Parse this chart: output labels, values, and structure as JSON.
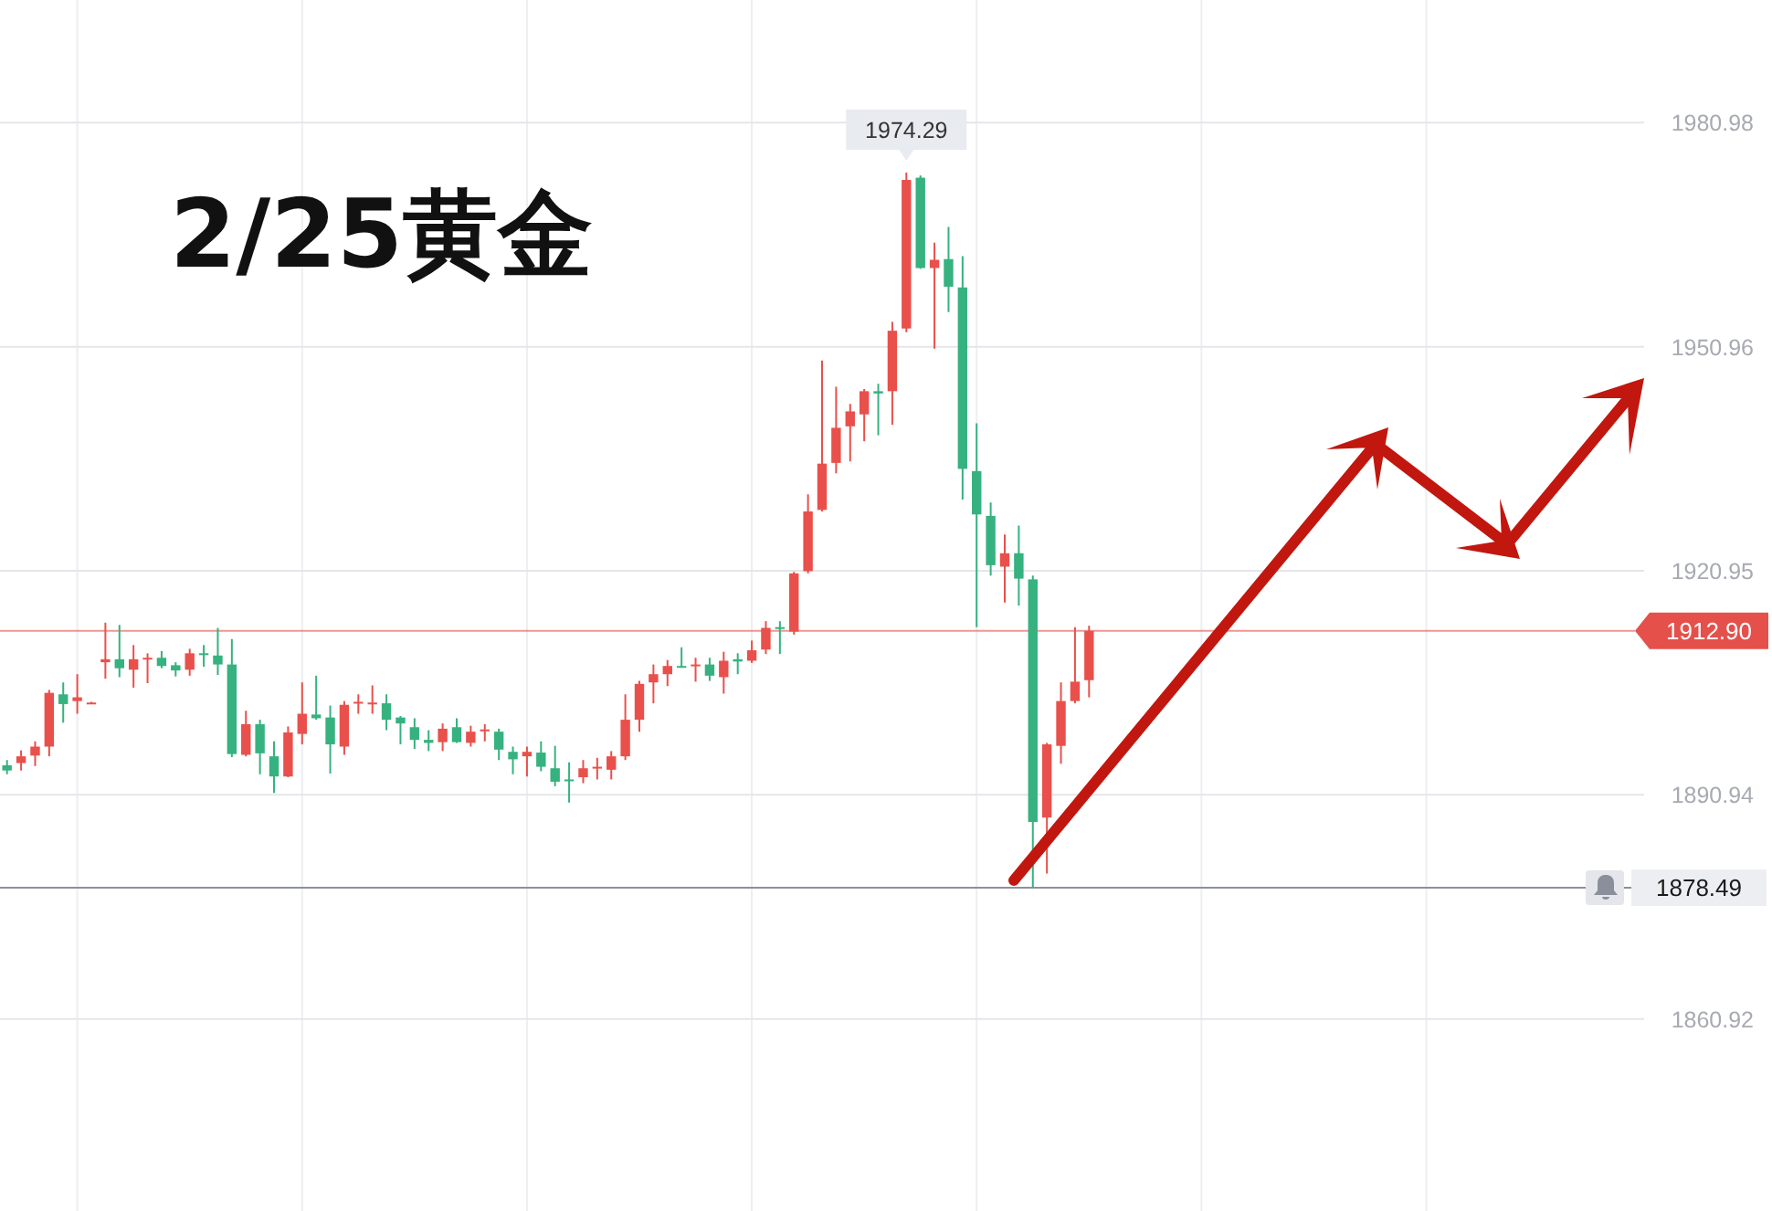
{
  "chart_data": {
    "type": "candlestick",
    "title": "2/25黄金",
    "categories": [
      null,
      null,
      null,
      null,
      null,
      null,
      null,
      null,
      null,
      null,
      null,
      null,
      null,
      null,
      null,
      null,
      null,
      null,
      null,
      null,
      null,
      null,
      null,
      null,
      null,
      null,
      null,
      null,
      null,
      null,
      null,
      null,
      null,
      null,
      null,
      null,
      null,
      null,
      null,
      null,
      null,
      null,
      null,
      null,
      null,
      null,
      null,
      null,
      null,
      null,
      null,
      null,
      null,
      null,
      null,
      null,
      null,
      null,
      null,
      null,
      null,
      null,
      null,
      null,
      null,
      null,
      null,
      null,
      null,
      null,
      null,
      null,
      null,
      null,
      null,
      null,
      null,
      null,
      null,
      null,
      null,
      null,
      null,
      null,
      null,
      null,
      null,
      null,
      null,
      null,
      null,
      null,
      null,
      null,
      null,
      null,
      null,
      null,
      null,
      null,
      null,
      null,
      null,
      null,
      null,
      null,
      null,
      null,
      null,
      null,
      null,
      null,
      null,
      null,
      null,
      null,
      null
    ],
    "ohlc": [
      [
        1894.9,
        1895.6,
        1893.7,
        1894.2
      ],
      [
        1895.2,
        1896.9,
        1894.2,
        1896.1
      ],
      [
        1896.2,
        1898.1,
        1894.8,
        1897.4
      ],
      [
        1897.4,
        1905.0,
        1896.1,
        1904.6
      ],
      [
        1904.4,
        1906.0,
        1900.6,
        1903.1
      ],
      [
        1903.5,
        1907.1,
        1901.8,
        1904.0
      ],
      [
        1903.2,
        1903.4,
        1903.1,
        1903.3
      ],
      [
        1908.7,
        1914.0,
        1906.5,
        1909.1
      ],
      [
        1909.1,
        1913.7,
        1906.7,
        1907.9
      ],
      [
        1907.7,
        1911.0,
        1905.3,
        1909.1
      ],
      [
        1909.1,
        1909.9,
        1905.9,
        1909.3
      ],
      [
        1909.3,
        1910.2,
        1907.9,
        1908.2
      ],
      [
        1908.3,
        1908.7,
        1906.8,
        1907.6
      ],
      [
        1907.7,
        1910.5,
        1906.9,
        1909.9
      ],
      [
        1909.9,
        1911.0,
        1908.1,
        1909.7
      ],
      [
        1909.6,
        1913.3,
        1907.0,
        1908.4
      ],
      [
        1908.4,
        1911.8,
        1896.0,
        1896.4
      ],
      [
        1896.3,
        1902.2,
        1896.1,
        1900.4
      ],
      [
        1900.4,
        1901.0,
        1893.7,
        1896.5
      ],
      [
        1896.1,
        1898.1,
        1891.2,
        1893.4
      ],
      [
        1893.4,
        1900.1,
        1893.3,
        1899.3
      ],
      [
        1899.1,
        1906.0,
        1897.7,
        1901.8
      ],
      [
        1901.7,
        1906.9,
        1901.0,
        1901.2
      ],
      [
        1901.3,
        1902.9,
        1893.8,
        1897.7
      ],
      [
        1897.4,
        1903.5,
        1896.3,
        1903.0
      ],
      [
        1903.2,
        1904.4,
        1901.8,
        1903.4
      ],
      [
        1903.2,
        1905.6,
        1901.8,
        1903.3
      ],
      [
        1903.2,
        1904.4,
        1899.6,
        1901.0
      ],
      [
        1901.3,
        1901.5,
        1897.7,
        1900.5
      ],
      [
        1900.0,
        1901.2,
        1897.1,
        1898.3
      ],
      [
        1898.3,
        1899.6,
        1896.8,
        1897.9
      ],
      [
        1898.0,
        1900.5,
        1896.8,
        1899.8
      ],
      [
        1900.0,
        1901.2,
        1897.9,
        1898.0
      ],
      [
        1897.9,
        1900.2,
        1897.4,
        1899.4
      ],
      [
        1899.5,
        1900.4,
        1898.1,
        1899.7
      ],
      [
        1899.4,
        1899.8,
        1895.6,
        1897.0
      ],
      [
        1896.7,
        1897.4,
        1893.7,
        1895.7
      ],
      [
        1896.1,
        1897.4,
        1893.4,
        1896.7
      ],
      [
        1896.6,
        1898.1,
        1894.1,
        1894.7
      ],
      [
        1894.5,
        1897.5,
        1892.1,
        1892.7
      ],
      [
        1893.0,
        1895.3,
        1889.9,
        1892.8
      ],
      [
        1893.3,
        1895.6,
        1892.5,
        1894.5
      ],
      [
        1894.5,
        1895.9,
        1893.0,
        1894.7
      ],
      [
        1894.3,
        1896.8,
        1893.0,
        1896.1
      ],
      [
        1896.1,
        1904.4,
        1895.6,
        1901.0
      ],
      [
        1901.0,
        1906.2,
        1899.4,
        1905.8
      ],
      [
        1906.0,
        1908.4,
        1903.2,
        1907.1
      ],
      [
        1907.1,
        1909.0,
        1905.5,
        1908.2
      ],
      [
        1908.2,
        1910.7,
        1908.0,
        1908.0
      ],
      [
        1908.2,
        1909.3,
        1906.1,
        1908.4
      ],
      [
        1908.4,
        1909.3,
        1906.2,
        1906.9
      ],
      [
        1906.7,
        1910.1,
        1904.5,
        1908.9
      ],
      [
        1909.1,
        1909.9,
        1907.1,
        1908.8
      ],
      [
        1908.9,
        1911.6,
        1908.6,
        1910.3
      ],
      [
        1910.4,
        1914.2,
        1909.8,
        1913.3
      ],
      [
        1913.4,
        1914.2,
        1909.8,
        1913.2
      ],
      [
        1912.8,
        1920.8,
        1912.4,
        1920.6
      ],
      [
        1920.9,
        1931.2,
        1920.6,
        1928.9
      ],
      [
        1929.1,
        1949.1,
        1928.9,
        1935.3
      ],
      [
        1935.4,
        1945.6,
        1934.0,
        1940.1
      ],
      [
        1940.3,
        1943.3,
        1935.6,
        1942.3
      ],
      [
        1941.9,
        1945.3,
        1938.3,
        1945.0
      ],
      [
        1945.0,
        1946.0,
        1939.1,
        1944.7
      ],
      [
        1945.0,
        1954.3,
        1940.5,
        1953.1
      ],
      [
        1953.4,
        1974.29,
        1952.9,
        1973.3
      ],
      [
        1973.6,
        1973.9,
        1961.4,
        1961.5
      ],
      [
        1961.5,
        1964.9,
        1950.7,
        1962.6
      ],
      [
        1962.7,
        1967.0,
        1955.6,
        1959.0
      ],
      [
        1958.9,
        1963.1,
        1930.5,
        1934.6
      ],
      [
        1934.3,
        1940.7,
        1913.4,
        1928.5
      ],
      [
        1928.3,
        1930.1,
        1920.3,
        1921.7
      ],
      [
        1921.5,
        1925.8,
        1916.7,
        1923.3
      ],
      [
        1923.3,
        1927.0,
        1916.3,
        1919.9
      ],
      [
        1919.8,
        1920.3,
        1878.5,
        1887.3
      ],
      [
        1887.9,
        1897.9,
        1880.4,
        1897.7
      ],
      [
        1897.5,
        1906.0,
        1895.1,
        1903.5
      ],
      [
        1903.5,
        1913.4,
        1903.2,
        1906.1
      ],
      [
        1906.3,
        1913.6,
        1904.0,
        1912.9
      ],
      null,
      null,
      null,
      null,
      null,
      null,
      null,
      null,
      null,
      null,
      null,
      null,
      null,
      null,
      null,
      null,
      null,
      null,
      null,
      null,
      null,
      null,
      null,
      null,
      null,
      null,
      null,
      null,
      null,
      null,
      null,
      null,
      null,
      null,
      null,
      null,
      null,
      null,
      null
    ],
    "colors": [
      "#35b27f",
      "#e9504b",
      "#e9504b",
      "#e9504b",
      "#35b27f",
      "#e9504b",
      "#e9504b",
      "#e9504b",
      "#35b27f",
      "#e9504b",
      "#e9504b",
      "#35b27f",
      "#35b27f",
      "#e9504b",
      "#35b27f",
      "#35b27f",
      "#35b27f",
      "#e9504b",
      "#35b27f",
      "#35b27f",
      "#e9504b",
      "#e9504b",
      "#35b27f",
      "#35b27f",
      "#e9504b",
      "#e9504b",
      "#e9504b",
      "#35b27f",
      "#35b27f",
      "#35b27f",
      "#35b27f",
      "#e9504b",
      "#35b27f",
      "#e9504b",
      "#e9504b",
      "#35b27f",
      "#35b27f",
      "#e9504b",
      "#35b27f",
      "#35b27f",
      "#35b27f",
      "#e9504b",
      "#e9504b",
      "#e9504b",
      "#e9504b",
      "#e9504b",
      "#e9504b",
      "#e9504b",
      "#35b27f",
      "#e9504b",
      "#35b27f",
      "#e9504b",
      "#35b27f",
      "#e9504b",
      "#e9504b",
      "#35b27f",
      "#e9504b",
      "#e9504b",
      "#e9504b",
      "#e9504b",
      "#e9504b",
      "#e9504b",
      "#35b27f",
      "#e9504b",
      "#e9504b",
      "#35b27f",
      "#e9504b",
      "#35b27f",
      "#35b27f",
      "#35b27f",
      "#35b27f",
      "#e9504b",
      "#35b27f",
      "#35b27f",
      "#e9504b",
      "#e9504b",
      "#e9504b",
      "#e9504b",
      null,
      null,
      null,
      null,
      null,
      null,
      null,
      null,
      null,
      null,
      null,
      null,
      null,
      null,
      null,
      null,
      null,
      null,
      null,
      null,
      null,
      null,
      null,
      null,
      null,
      null,
      null,
      null,
      null,
      null,
      null,
      null,
      null,
      null,
      null,
      null,
      null,
      null,
      null
    ],
    "ylim": [
      1835.2,
      1997.4
    ],
    "yticks": [
      1860.92,
      1890.94,
      1920.95,
      1950.96,
      1980.98
    ],
    "tick_labels": "y",
    "grid": true,
    "annotations": [
      {
        "text": "1974.29",
        "y": 1974.29
      }
    ],
    "ref_lines": [
      {
        "axis": "y",
        "value": 1912.9,
        "label": "1912.90",
        "color": "#e5504b"
      },
      {
        "axis": "y",
        "value": 1878.49,
        "label": "1878.49",
        "color": "#8c9099"
      }
    ]
  }
}
